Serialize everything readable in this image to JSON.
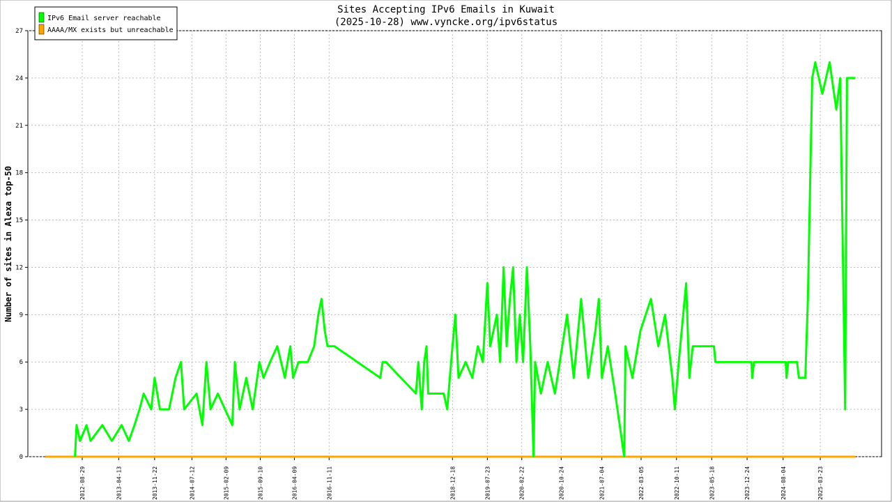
{
  "chart_data": {
    "type": "line",
    "title": "Sites Accepting IPv6 Emails in Kuwait",
    "subtitle": "(2025-10-28) www.vyncke.org/ipv6status",
    "y_label": "Number of sites in Alexa top-50",
    "x": [
      "2012-01-12",
      "2012-07-15",
      "2012-07-25",
      "2012-08-15",
      "2012-09-25",
      "2012-10-20",
      "2013-01-01",
      "2013-03-01",
      "2013-05-01",
      "2013-06-15",
      "2013-07-20",
      "2013-08-20",
      "2013-09-15",
      "2013-11-01",
      "2013-11-22",
      "2013-12-25",
      "2014-02-20",
      "2014-04-01",
      "2014-05-05",
      "2014-05-25",
      "2014-08-10",
      "2014-09-15",
      "2014-10-10",
      "2014-11-05",
      "2014-12-20",
      "2015-03-20",
      "2015-04-05",
      "2015-05-05",
      "2015-06-15",
      "2015-07-25",
      "2015-09-05",
      "2015-09-30",
      "2015-11-10",
      "2015-12-25",
      "2016-02-10",
      "2016-03-15",
      "2016-04-01",
      "2016-05-05",
      "2016-07-01",
      "2016-08-10",
      "2016-09-05",
      "2016-09-25",
      "2016-10-15",
      "2016-11-01",
      "2016-12-15",
      "2017-09-25",
      "2017-10-10",
      "2017-10-30",
      "2018-05-05",
      "2018-05-20",
      "2018-06-10",
      "2018-06-25",
      "2018-07-10",
      "2018-07-20",
      "2018-10-25",
      "2018-11-15",
      "2018-12-18",
      "2019-01-05",
      "2019-01-25",
      "2019-03-10",
      "2019-04-20",
      "2019-05-25",
      "2019-06-25",
      "2019-07-23",
      "2019-08-10",
      "2019-09-20",
      "2019-10-10",
      "2019-11-01",
      "2019-11-20",
      "2019-12-10",
      "2019-12-30",
      "2020-01-20",
      "2020-02-10",
      "2020-03-01",
      "2020-03-25",
      "2020-04-15",
      "2020-05-05",
      "2020-05-15",
      "2020-06-20",
      "2020-08-01",
      "2020-09-15",
      "2020-11-30",
      "2021-01-10",
      "2021-02-25",
      "2021-04-10",
      "2021-05-25",
      "2021-06-15",
      "2021-07-04",
      "2021-08-10",
      "2021-09-25",
      "2021-11-20",
      "2021-11-28",
      "2022-01-10",
      "2022-03-01",
      "2022-05-05",
      "2022-06-20",
      "2022-08-01",
      "2022-09-15",
      "2022-10-01",
      "2022-10-25",
      "2022-12-10",
      "2022-12-30",
      "2023-01-20",
      "2023-06-01",
      "2023-06-10",
      "2024-01-20",
      "2024-01-25",
      "2024-02-05",
      "2024-08-20",
      "2024-08-25",
      "2024-09-05",
      "2024-10-30",
      "2024-11-10",
      "2024-12-20",
      "2025-01-05",
      "2025-01-20",
      "2025-02-01",
      "2025-02-20",
      "2025-04-05",
      "2025-05-20",
      "2025-07-01",
      "2025-07-25",
      "2025-08-25",
      "2025-09-05",
      "2025-10-28"
    ],
    "series": [
      {
        "name": "IPv6 Email server reachable",
        "color": "#00ff00",
        "values": [
          null,
          0,
          2,
          1,
          2,
          1,
          2,
          1,
          2,
          1,
          2,
          3,
          4,
          3,
          5,
          3,
          3,
          5,
          6,
          3,
          4,
          2,
          6,
          3,
          4,
          2,
          6,
          3,
          5,
          3,
          6,
          5,
          6,
          7,
          5,
          7,
          5,
          6,
          6,
          7,
          9,
          10,
          8,
          7,
          7,
          5,
          6,
          6,
          4,
          6,
          3,
          6,
          7,
          4,
          4,
          3,
          7,
          9,
          5,
          6,
          5,
          7,
          6,
          11,
          7,
          9,
          6,
          12,
          7,
          10,
          12,
          6,
          9,
          6,
          12,
          7,
          0,
          6,
          4,
          6,
          4,
          9,
          5,
          10,
          5,
          8,
          10,
          5,
          7,
          4,
          0,
          7,
          5,
          8,
          10,
          7,
          9,
          5,
          3,
          6,
          11,
          5,
          7,
          7,
          6,
          6,
          5,
          6,
          6,
          5,
          6,
          6,
          5,
          5,
          10,
          18,
          24,
          25,
          23,
          25,
          22,
          24,
          3,
          24,
          24
        ]
      },
      {
        "name": "AAAA/MX exists but unreachable",
        "color": "#ffa500",
        "values": [
          0,
          0,
          0,
          0,
          0,
          0,
          0,
          0,
          0,
          0,
          0,
          0,
          0,
          0,
          0,
          0,
          0,
          0,
          0,
          0,
          0,
          0,
          0,
          0,
          0,
          0,
          0,
          0,
          0,
          0,
          0,
          0,
          0,
          0,
          0,
          0,
          0,
          0,
          0,
          0,
          0,
          0,
          0,
          0,
          0,
          0,
          0,
          0,
          0,
          0,
          0,
          0,
          0,
          0,
          0,
          0,
          0,
          0,
          0,
          0,
          0,
          0,
          0,
          0,
          0,
          0,
          0,
          0,
          0,
          0,
          0,
          0,
          0,
          0,
          0,
          0,
          0,
          0,
          0,
          0,
          0,
          0,
          0,
          0,
          0,
          0,
          0,
          0,
          0,
          0,
          0,
          0,
          0,
          0,
          0,
          0,
          0,
          0,
          0,
          0,
          0,
          0,
          0,
          0,
          0,
          0,
          0,
          0,
          0,
          0,
          0,
          0,
          0,
          0,
          0,
          0,
          0,
          0,
          0,
          0,
          0,
          0,
          0,
          0,
          0
        ]
      }
    ],
    "xlim": [
      "2011-09-26",
      "2026-04-08"
    ],
    "xticks": [
      "2012-08-29",
      "2013-04-13",
      "2013-11-22",
      "2014-07-12",
      "2015-02-09",
      "2015-09-10",
      "2016-04-09",
      "2016-11-11",
      "2018-12-18",
      "2019-07-23",
      "2020-02-22",
      "2020-10-24",
      "2021-07-04",
      "2022-03-05",
      "2022-10-11",
      "2023-05-18",
      "2023-12-24",
      "2024-08-04",
      "2025-03-23"
    ],
    "ylim": [
      0,
      27
    ],
    "yticks": [
      0,
      3,
      6,
      9,
      12,
      15,
      18,
      21,
      24,
      27
    ],
    "grid": true,
    "legend": "top-left"
  }
}
